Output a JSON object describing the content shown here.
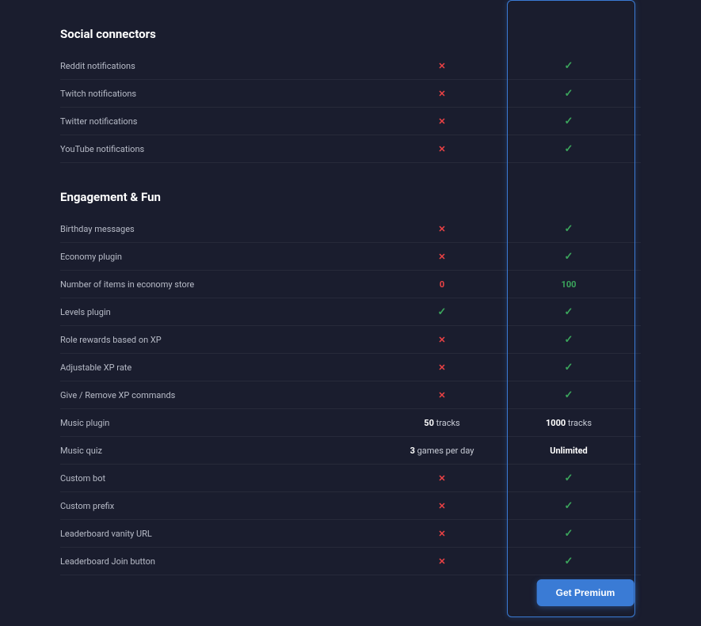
{
  "colors": {
    "background": "#1a1d2e",
    "check": "#3ba55c",
    "cross": "#ed4245",
    "premium_border": "#3a7bd5",
    "button_bg": "#3a7bd5",
    "text_muted": "#b8bcc8",
    "row_border": "rgba(255,255,255,0.06)"
  },
  "sections": [
    {
      "title": "Social connectors",
      "rows": [
        {
          "label": "Reddit notifications",
          "free": {
            "type": "cross"
          },
          "premium": {
            "type": "check"
          }
        },
        {
          "label": "Twitch notifications",
          "free": {
            "type": "cross"
          },
          "premium": {
            "type": "check"
          }
        },
        {
          "label": "Twitter notifications",
          "free": {
            "type": "cross"
          },
          "premium": {
            "type": "check"
          }
        },
        {
          "label": "YouTube notifications",
          "free": {
            "type": "cross"
          },
          "premium": {
            "type": "check"
          }
        }
      ]
    },
    {
      "title": "Engagement & Fun",
      "rows": [
        {
          "label": "Birthday messages",
          "free": {
            "type": "cross"
          },
          "premium": {
            "type": "check"
          }
        },
        {
          "label": "Economy plugin",
          "free": {
            "type": "cross"
          },
          "premium": {
            "type": "check"
          }
        },
        {
          "label": "Number of items in economy store",
          "free": {
            "type": "num-red",
            "value": "0"
          },
          "premium": {
            "type": "num-green",
            "value": "100"
          }
        },
        {
          "label": "Levels plugin",
          "free": {
            "type": "check"
          },
          "premium": {
            "type": "check"
          }
        },
        {
          "label": "Role rewards based on XP",
          "free": {
            "type": "cross"
          },
          "premium": {
            "type": "check"
          }
        },
        {
          "label": "Adjustable XP rate",
          "free": {
            "type": "cross"
          },
          "premium": {
            "type": "check"
          }
        },
        {
          "label": "Give / Remove XP commands",
          "free": {
            "type": "cross"
          },
          "premium": {
            "type": "check"
          }
        },
        {
          "label": "Music plugin",
          "free": {
            "type": "text",
            "bold": "50",
            "rest": " tracks"
          },
          "premium": {
            "type": "text",
            "bold": "1000",
            "rest": " tracks"
          }
        },
        {
          "label": "Music quiz",
          "free": {
            "type": "text",
            "bold": "3",
            "rest": " games per day"
          },
          "premium": {
            "type": "bold-white",
            "value": "Unlimited"
          }
        },
        {
          "label": "Custom bot",
          "free": {
            "type": "cross"
          },
          "premium": {
            "type": "check"
          }
        },
        {
          "label": "Custom prefix",
          "free": {
            "type": "cross"
          },
          "premium": {
            "type": "check"
          }
        },
        {
          "label": "Leaderboard vanity URL",
          "free": {
            "type": "cross"
          },
          "premium": {
            "type": "check"
          }
        },
        {
          "label": "Leaderboard Join button",
          "free": {
            "type": "cross"
          },
          "premium": {
            "type": "check"
          }
        }
      ]
    }
  ],
  "cta": {
    "label": "Get Premium"
  }
}
